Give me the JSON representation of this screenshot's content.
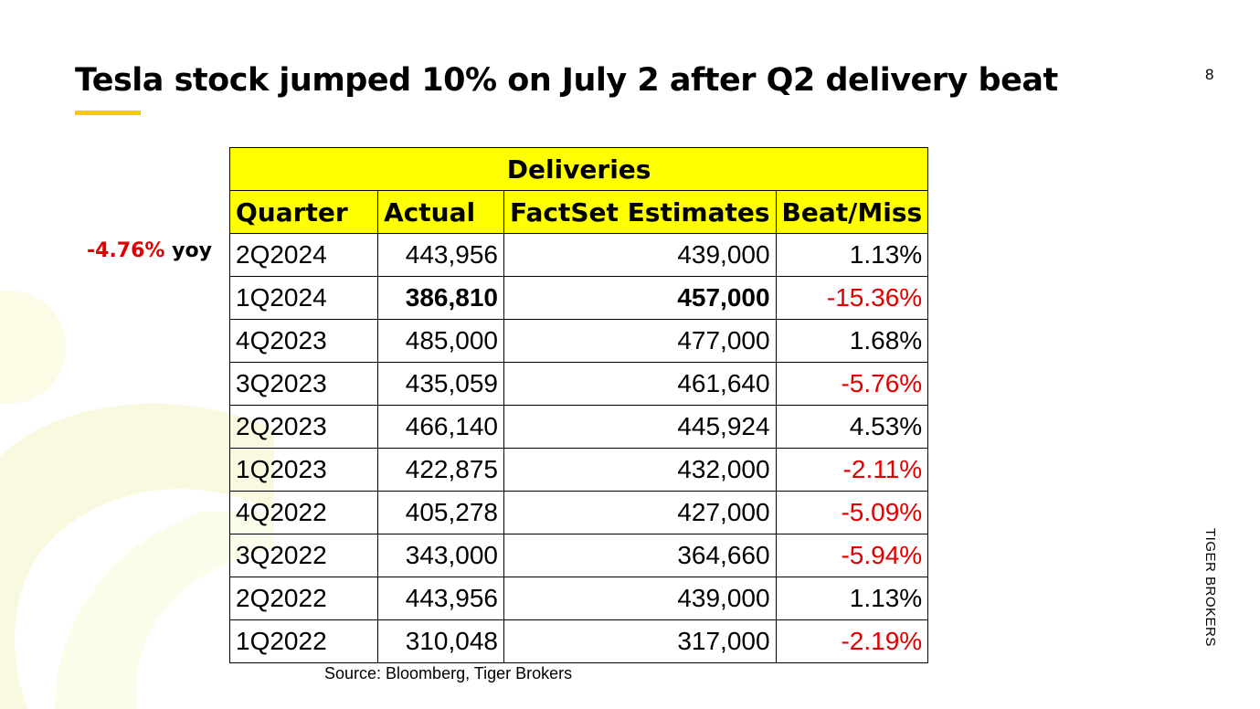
{
  "slide": {
    "title": "Tesla stock jumped 10% on July 2 after Q2 delivery beat",
    "page_number": "8",
    "brand": "TIGER BROKERS",
    "source": "Source: Bloomberg, Tiger Brokers",
    "yoy_note": {
      "value": "-4.76%",
      "suffix": "yoy"
    },
    "colors": {
      "accent": "#f5cc00",
      "header_bg": "#ffff00",
      "miss": "#e00000"
    }
  },
  "table": {
    "group_header": "Deliveries",
    "columns": [
      "Quarter",
      "Actual",
      "FactSet Estimates",
      "Beat/Miss"
    ],
    "rows": [
      {
        "quarter": "2Q2024",
        "actual": "443,956",
        "estimate": "439,000",
        "beat_miss": "1.13%"
      },
      {
        "quarter": "1Q2024",
        "actual": "386,810",
        "estimate": "457,000",
        "beat_miss": "-15.36%"
      },
      {
        "quarter": "4Q2023",
        "actual": "485,000",
        "estimate": "477,000",
        "beat_miss": "1.68%"
      },
      {
        "quarter": "3Q2023",
        "actual": "435,059",
        "estimate": "461,640",
        "beat_miss": "-5.76%"
      },
      {
        "quarter": "2Q2023",
        "actual": "466,140",
        "estimate": "445,924",
        "beat_miss": "4.53%"
      },
      {
        "quarter": "1Q2023",
        "actual": "422,875",
        "estimate": "432,000",
        "beat_miss": "-2.11%"
      },
      {
        "quarter": "4Q2022",
        "actual": "405,278",
        "estimate": "427,000",
        "beat_miss": "-5.09%"
      },
      {
        "quarter": "3Q2022",
        "actual": "343,000",
        "estimate": "364,660",
        "beat_miss": "-5.94%"
      },
      {
        "quarter": "2Q2022",
        "actual": "443,956",
        "estimate": "439,000",
        "beat_miss": "1.13%"
      },
      {
        "quarter": "1Q2022",
        "actual": "310,048",
        "estimate": "317,000",
        "beat_miss": "-2.19%"
      }
    ]
  }
}
